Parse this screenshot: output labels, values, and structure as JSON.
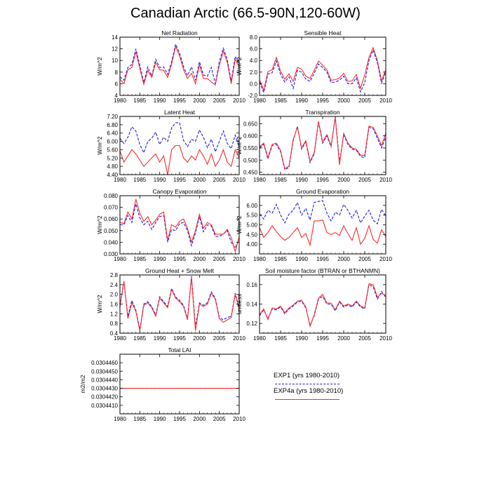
{
  "title": "Canadian Arctic (66.5-90N,120-60W)",
  "series_styles": {
    "EXP1": {
      "color": "#1f1fe6",
      "dash": "dashed"
    },
    "EXP4a": {
      "color": "#ff2a2a",
      "dash": "solid"
    }
  },
  "legend": {
    "entries": [
      {
        "label": "EXP1 (yrs 1980-2010)",
        "color": "#1f1fe6",
        "style": "dashed"
      },
      {
        "label": "EXP4a (yrs 1980-2010)",
        "color": "#ff2a2a",
        "style": "solid"
      }
    ]
  },
  "chart_data": [
    {
      "type": "line",
      "title": "Net Radiation",
      "xlabel": "",
      "ylabel": "W/m^2",
      "xlim": [
        1980,
        2010
      ],
      "ylim": [
        4,
        14
      ],
      "xticks": [
        "1980",
        "1985",
        "1990",
        "1995",
        "2000",
        "2005",
        "2010"
      ],
      "yticks": [
        "4",
        "6",
        "8",
        "10",
        "12",
        "14"
      ],
      "x": [
        1980,
        1981,
        1982,
        1983,
        1984,
        1985,
        1986,
        1987,
        1988,
        1989,
        1990,
        1991,
        1992,
        1993,
        1994,
        1995,
        1996,
        1997,
        1998,
        1999,
        2000,
        2001,
        2002,
        2003,
        2004,
        2005,
        2006,
        2007,
        2008,
        2009,
        2010
      ],
      "series": [
        {
          "key": "EXP1",
          "values": [
            7.2,
            6.6,
            8.8,
            9.3,
            12.0,
            9.2,
            6.2,
            8.9,
            7.3,
            10.2,
            8.8,
            8.9,
            7.6,
            9.8,
            12.8,
            11.3,
            8.9,
            7.4,
            8.9,
            6.6,
            9.8,
            7.5,
            7.3,
            8.8,
            6.0,
            9.8,
            12.1,
            10.2,
            6.5,
            10.7,
            9.4
          ]
        },
        {
          "key": "EXP4a",
          "values": [
            6.8,
            6.0,
            8.4,
            8.8,
            11.5,
            8.6,
            5.9,
            8.3,
            7.1,
            9.7,
            8.4,
            8.3,
            7.1,
            9.3,
            12.4,
            10.8,
            8.4,
            6.9,
            7.8,
            6.0,
            9.3,
            6.9,
            6.9,
            6.3,
            5.8,
            9.2,
            11.6,
            9.7,
            6.0,
            10.2,
            8.9
          ]
        }
      ]
    },
    {
      "type": "line",
      "title": "Sensible Heat",
      "xlabel": "",
      "ylabel": "W/m^2",
      "xlim": [
        1980,
        2010
      ],
      "ylim": [
        -2,
        8
      ],
      "xticks": [
        "1980",
        "1985",
        "1990",
        "1995",
        "2000",
        "2005",
        "2010"
      ],
      "yticks": [
        "-2.0",
        "0.0",
        "2.0",
        "4.0",
        "6.0",
        "8.0"
      ],
      "x": [
        1980,
        1981,
        1982,
        1983,
        1984,
        1985,
        1986,
        1987,
        1988,
        1989,
        1990,
        1991,
        1992,
        1993,
        1994,
        1995,
        1996,
        1997,
        1998,
        1999,
        2000,
        2001,
        2002,
        2003,
        2004,
        2005,
        2006,
        2007,
        2008,
        2009,
        2010
      ],
      "series": [
        {
          "key": "EXP1",
          "values": [
            0.3,
            -1.5,
            1.7,
            1.9,
            3.9,
            1.6,
            0.3,
            1.2,
            -0.8,
            2.3,
            2.0,
            0.8,
            0.4,
            1.8,
            3.4,
            2.8,
            2.0,
            0.2,
            0.3,
            0.6,
            1.3,
            0.0,
            0.0,
            1.0,
            -1.4,
            0.2,
            4.0,
            5.8,
            3.6,
            0.1,
            2.1
          ]
        },
        {
          "key": "EXP4a",
          "values": [
            0.7,
            -1.1,
            2.1,
            2.4,
            4.5,
            2.1,
            0.8,
            1.7,
            0.4,
            2.8,
            2.5,
            1.3,
            0.9,
            2.3,
            3.9,
            3.2,
            2.4,
            0.6,
            0.7,
            1.0,
            1.8,
            0.4,
            0.5,
            1.6,
            -0.8,
            1.5,
            4.5,
            6.2,
            4.0,
            0.5,
            2.4
          ]
        }
      ]
    },
    {
      "type": "line",
      "title": "Latent Heat",
      "xlabel": "",
      "ylabel": "W/m^2",
      "xlim": [
        1980,
        2010
      ],
      "ylim": [
        4.4,
        7.2
      ],
      "xticks": [
        "1980",
        "1985",
        "1990",
        "1995",
        "2000",
        "2005",
        "2010"
      ],
      "yticks": [
        "4.40",
        "4.80",
        "5.20",
        "5.60",
        "6.00",
        "6.40",
        "6.80",
        "7.20"
      ],
      "x": [
        1980,
        1981,
        1982,
        1983,
        1984,
        1985,
        1986,
        1987,
        1988,
        1989,
        1990,
        1991,
        1992,
        1993,
        1994,
        1995,
        1996,
        1997,
        1998,
        1999,
        2000,
        2001,
        2002,
        2003,
        2004,
        2005,
        2006,
        2007,
        2008,
        2009,
        2010
      ],
      "series": [
        {
          "key": "EXP1",
          "values": [
            6.15,
            5.9,
            6.2,
            6.7,
            6.5,
            5.85,
            5.45,
            6.0,
            6.15,
            6.45,
            5.85,
            6.2,
            6.0,
            6.65,
            6.9,
            6.9,
            6.05,
            5.75,
            6.1,
            6.0,
            6.55,
            6.2,
            5.7,
            6.1,
            5.5,
            6.0,
            6.5,
            5.9,
            5.65,
            6.3,
            5.7
          ]
        },
        {
          "key": "EXP4a",
          "values": [
            5.55,
            5.0,
            5.3,
            5.6,
            5.4,
            5.1,
            4.8,
            5.0,
            5.2,
            5.4,
            5.0,
            5.3,
            4.4,
            5.6,
            5.8,
            5.8,
            5.2,
            5.0,
            5.3,
            5.1,
            5.6,
            5.3,
            4.9,
            5.4,
            4.8,
            5.1,
            5.6,
            5.0,
            4.8,
            5.6,
            5.2
          ]
        }
      ]
    },
    {
      "type": "line",
      "title": "Transpiration",
      "xlabel": "",
      "ylabel": "W/m^2",
      "xlim": [
        1980,
        2010
      ],
      "ylim": [
        0.44,
        0.68
      ],
      "xticks": [
        "1980",
        "1985",
        "1990",
        "1995",
        "2000",
        "2005",
        "2010"
      ],
      "yticks": [
        "0.450",
        "0.500",
        "0.550",
        "0.600",
        "0.650"
      ],
      "x": [
        1980,
        1981,
        1982,
        1983,
        1984,
        1985,
        1986,
        1987,
        1988,
        1989,
        1990,
        1991,
        1992,
        1993,
        1994,
        1995,
        1996,
        1997,
        1998,
        1999,
        2000,
        2001,
        2002,
        2003,
        2004,
        2005,
        2006,
        2007,
        2008,
        2009,
        2010
      ],
      "series": [
        {
          "key": "EXP1",
          "values": [
            0.55,
            0.565,
            0.505,
            0.56,
            0.565,
            0.535,
            0.46,
            0.47,
            0.58,
            0.64,
            0.545,
            0.575,
            0.49,
            0.525,
            0.655,
            0.57,
            0.6,
            0.555,
            0.68,
            0.49,
            0.605,
            0.565,
            0.545,
            0.54,
            0.515,
            0.51,
            0.635,
            0.63,
            0.59,
            0.55,
            0.595
          ]
        },
        {
          "key": "EXP4a",
          "values": [
            0.555,
            0.57,
            0.51,
            0.565,
            0.57,
            0.54,
            0.465,
            0.475,
            0.585,
            0.635,
            0.55,
            0.58,
            0.495,
            0.53,
            0.66,
            0.575,
            0.605,
            0.56,
            0.675,
            0.48,
            0.61,
            0.57,
            0.55,
            0.545,
            0.52,
            0.52,
            0.64,
            0.635,
            0.6,
            0.56,
            0.61
          ]
        }
      ]
    },
    {
      "type": "line",
      "title": "Canopy Evaporation",
      "xlabel": "",
      "ylabel": "W/m^2",
      "xlim": [
        1980,
        2010
      ],
      "ylim": [
        0.03,
        0.08
      ],
      "xticks": [
        "1980",
        "1985",
        "1990",
        "1995",
        "2000",
        "2005",
        "2010"
      ],
      "yticks": [
        "0.030",
        "0.040",
        "0.050",
        "0.060",
        "0.070",
        "0.080"
      ],
      "x": [
        1980,
        1981,
        1982,
        1983,
        1984,
        1985,
        1986,
        1987,
        1988,
        1989,
        1990,
        1991,
        1992,
        1993,
        1994,
        1995,
        1996,
        1997,
        1998,
        1999,
        2000,
        2001,
        2002,
        2003,
        2004,
        2005,
        2006,
        2007,
        2008,
        2009,
        2010
      ],
      "series": [
        {
          "key": "EXP1",
          "values": [
            0.055,
            0.055,
            0.063,
            0.057,
            0.073,
            0.061,
            0.055,
            0.058,
            0.051,
            0.057,
            0.062,
            0.063,
            0.04,
            0.051,
            0.05,
            0.056,
            0.057,
            0.05,
            0.037,
            0.048,
            0.062,
            0.049,
            0.055,
            0.054,
            0.045,
            0.045,
            0.047,
            0.05,
            0.04,
            0.035,
            0.043
          ]
        },
        {
          "key": "EXP4a",
          "values": [
            0.057,
            0.056,
            0.066,
            0.06,
            0.077,
            0.065,
            0.058,
            0.062,
            0.055,
            0.059,
            0.064,
            0.066,
            0.042,
            0.055,
            0.053,
            0.058,
            0.06,
            0.052,
            0.04,
            0.05,
            0.064,
            0.052,
            0.057,
            0.055,
            0.047,
            0.047,
            0.047,
            0.051,
            0.044,
            0.032,
            0.045
          ]
        }
      ]
    },
    {
      "type": "line",
      "title": "Ground Evaporation",
      "xlabel": "",
      "ylabel": "W/m^2",
      "xlim": [
        1980,
        2010
      ],
      "ylim": [
        3.5,
        6.5
      ],
      "xticks": [
        "1980",
        "1985",
        "1990",
        "1995",
        "2000",
        "2005",
        "2010"
      ],
      "yticks": [
        "4.00",
        "4.50",
        "5.00",
        "5.50",
        "6.00"
      ],
      "x": [
        1980,
        1981,
        1982,
        1983,
        1984,
        1985,
        1986,
        1987,
        1988,
        1989,
        1990,
        1991,
        1992,
        1993,
        1994,
        1995,
        1996,
        1997,
        1998,
        1999,
        2000,
        2001,
        2002,
        2003,
        2004,
        2005,
        2006,
        2007,
        2008,
        2009,
        2010
      ],
      "series": [
        {
          "key": "EXP1",
          "values": [
            5.55,
            5.3,
            5.75,
            5.6,
            6.05,
            5.5,
            5.1,
            5.55,
            5.75,
            6.15,
            5.5,
            5.85,
            5.25,
            6.15,
            6.2,
            6.25,
            5.6,
            5.2,
            5.65,
            5.5,
            6.05,
            5.75,
            5.35,
            5.75,
            5.1,
            5.45,
            5.75,
            5.25,
            5.05,
            5.8,
            5.45
          ]
        },
        {
          "key": "EXP4a",
          "values": [
            4.85,
            4.35,
            4.6,
            4.95,
            4.65,
            4.4,
            4.2,
            4.35,
            4.6,
            4.85,
            4.35,
            4.55,
            3.95,
            5.2,
            5.2,
            5.25,
            4.6,
            4.5,
            4.6,
            4.45,
            4.95,
            4.55,
            4.2,
            4.85,
            4.0,
            4.3,
            4.95,
            4.25,
            4.05,
            4.75,
            4.4
          ]
        }
      ]
    },
    {
      "type": "line",
      "title": "Ground Heat + Snow Melt",
      "xlabel": "",
      "ylabel": "W/m^2",
      "xlim": [
        1980,
        2010
      ],
      "ylim": [
        0.4,
        2.8
      ],
      "xticks": [
        "1980",
        "1985",
        "1990",
        "1995",
        "2000",
        "2005",
        "2010"
      ],
      "yticks": [
        "0.4",
        "0.8",
        "1.2",
        "1.6",
        "2.0",
        "2.4",
        "2.8"
      ],
      "x": [
        1980,
        1981,
        1982,
        1983,
        1984,
        1985,
        1986,
        1987,
        1988,
        1989,
        1990,
        1991,
        1992,
        1993,
        1994,
        1995,
        1996,
        1997,
        1998,
        1999,
        2000,
        2001,
        2002,
        2003,
        2004,
        2005,
        2006,
        2007,
        2008,
        2009,
        2010
      ],
      "series": [
        {
          "key": "EXP1",
          "values": [
            1.5,
            2.5,
            1.1,
            1.75,
            1.35,
            0.55,
            1.6,
            1.7,
            1.5,
            1.15,
            1.9,
            1.7,
            1.5,
            2.25,
            1.9,
            1.75,
            1.55,
            1.0,
            2.75,
            0.65,
            1.65,
            1.55,
            1.65,
            2.1,
            1.85,
            1.05,
            0.95,
            1.05,
            1.1,
            2.05,
            1.45
          ]
        },
        {
          "key": "EXP4a",
          "values": [
            1.5,
            2.55,
            1.0,
            1.65,
            1.3,
            0.5,
            1.55,
            1.65,
            1.45,
            1.1,
            1.85,
            1.65,
            1.45,
            2.2,
            1.85,
            1.7,
            1.5,
            0.95,
            2.7,
            0.5,
            1.6,
            1.5,
            1.6,
            2.05,
            1.8,
            1.0,
            0.85,
            0.95,
            1.05,
            2.0,
            1.4
          ]
        }
      ]
    },
    {
      "type": "line",
      "title": "Soil moisture factor (BTRAN or BTHANMN)",
      "xlabel": "",
      "ylabel": "unitless",
      "xlim": [
        1980,
        2010
      ],
      "ylim": [
        0.11,
        0.17
      ],
      "xticks": [
        "1980",
        "1985",
        "1990",
        "1995",
        "2000",
        "2005",
        "2010"
      ],
      "yticks": [
        "0.12",
        "0.14",
        "0.16"
      ],
      "x": [
        1980,
        1981,
        1982,
        1983,
        1984,
        1985,
        1986,
        1987,
        1988,
        1989,
        1990,
        1991,
        1992,
        1993,
        1994,
        1995,
        1996,
        1997,
        1998,
        1999,
        2000,
        2001,
        2002,
        2003,
        2004,
        2005,
        2006,
        2007,
        2008,
        2009,
        2010
      ],
      "series": [
        {
          "key": "EXP1",
          "values": [
            0.128,
            0.134,
            0.125,
            0.135,
            0.134,
            0.137,
            0.13,
            0.135,
            0.138,
            0.142,
            0.143,
            0.136,
            0.118,
            0.128,
            0.145,
            0.148,
            0.14,
            0.14,
            0.133,
            0.142,
            0.137,
            0.139,
            0.137,
            0.142,
            0.137,
            0.135,
            0.16,
            0.158,
            0.145,
            0.153,
            0.147
          ]
        },
        {
          "key": "EXP4a",
          "values": [
            0.129,
            0.135,
            0.124,
            0.136,
            0.135,
            0.138,
            0.131,
            0.136,
            0.139,
            0.143,
            0.144,
            0.137,
            0.117,
            0.129,
            0.146,
            0.15,
            0.141,
            0.141,
            0.134,
            0.143,
            0.138,
            0.14,
            0.138,
            0.143,
            0.138,
            0.136,
            0.161,
            0.16,
            0.147,
            0.151,
            0.149
          ]
        }
      ]
    },
    {
      "type": "line",
      "title": "Total LAI",
      "xlabel": "",
      "ylabel": "m2/m2",
      "xlim": [
        1980,
        2010
      ],
      "ylim": [
        0.03044,
        0.030447
      ],
      "xticks": [
        "1980",
        "1985",
        "1990",
        "1995",
        "2000",
        "2005",
        "2010"
      ],
      "yticks": [
        "0.0304410",
        "0.0304420",
        "0.0304430",
        "0.0304440",
        "0.0304450",
        "0.0304460"
      ],
      "x": [
        1980,
        2010
      ],
      "series": [
        {
          "key": "EXP1",
          "values": [
            0.030443,
            0.030443
          ]
        },
        {
          "key": "EXP4a",
          "values": [
            0.030443,
            0.030443
          ]
        }
      ]
    }
  ]
}
